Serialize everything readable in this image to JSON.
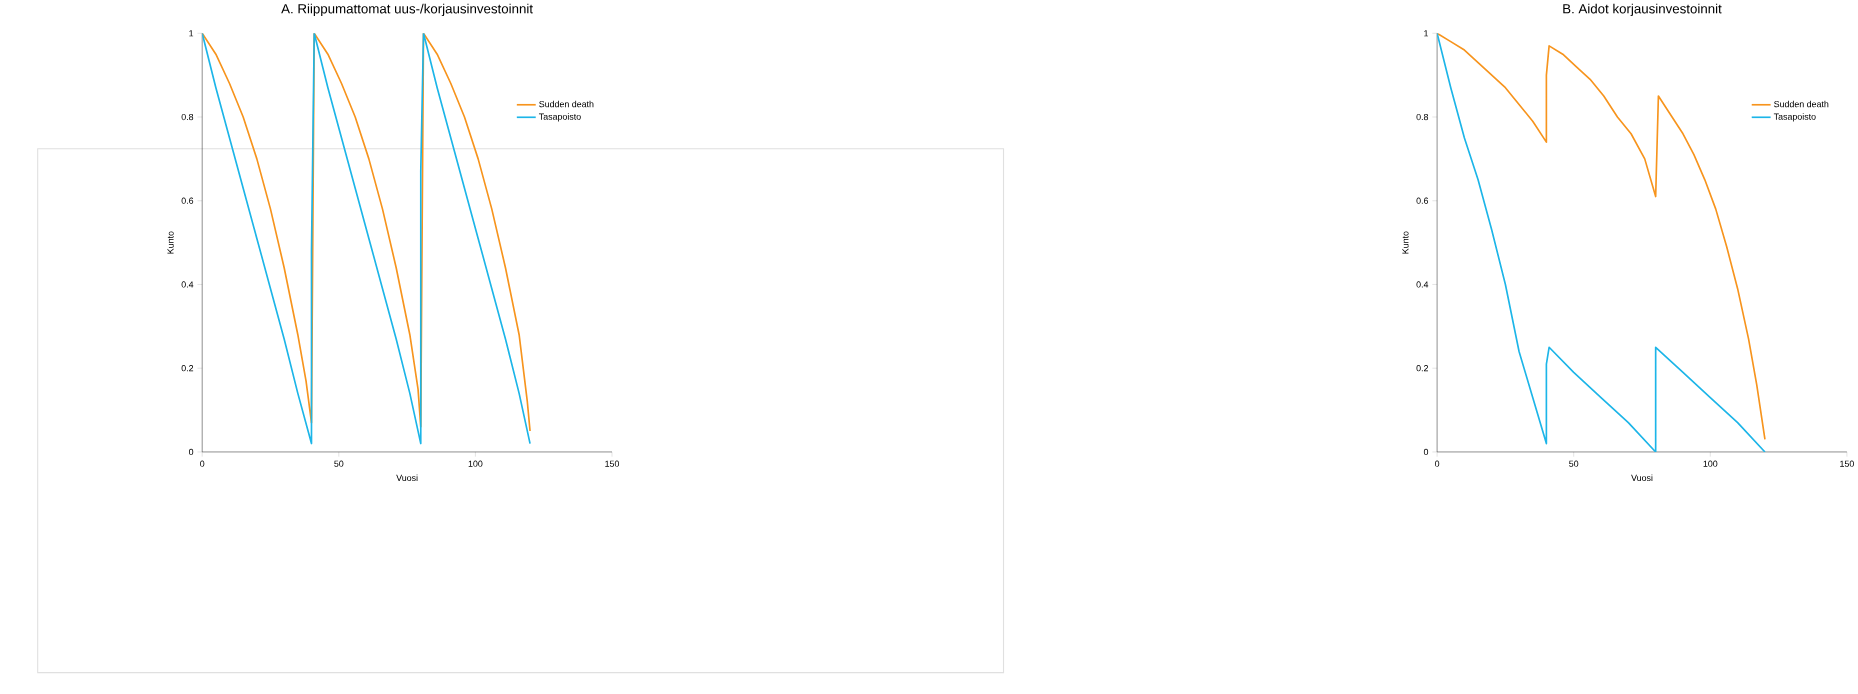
{
  "chart_data": [
    {
      "type": "line",
      "title": "A. Riippumattomat uus-/korjausinvestoinnit",
      "xlabel": "Vuosi",
      "ylabel": "Kunto",
      "xlim": [
        0,
        150
      ],
      "ylim": [
        0,
        1
      ],
      "xticks": [
        0,
        50,
        100,
        150
      ],
      "yticks": [
        0,
        0.2,
        0.4,
        0.6,
        0.8,
        1
      ],
      "legend": "top right",
      "grid": false,
      "series": [
        {
          "name": "Sudden death",
          "color": "#f7941d",
          "x": [
            0,
            5,
            10,
            15,
            20,
            25,
            30,
            35,
            38,
            40,
            41,
            46,
            51,
            56,
            61,
            66,
            71,
            76,
            79,
            80,
            81,
            86,
            91,
            96,
            101,
            106,
            111,
            116,
            119,
            120
          ],
          "values": [
            1,
            0.95,
            0.88,
            0.8,
            0.7,
            0.58,
            0.44,
            0.28,
            0.17,
            0.07,
            1,
            0.95,
            0.88,
            0.8,
            0.7,
            0.58,
            0.44,
            0.28,
            0.15,
            0.06,
            1,
            0.95,
            0.88,
            0.8,
            0.7,
            0.58,
            0.44,
            0.28,
            0.12,
            0.05
          ]
        },
        {
          "name": "Tasapoisto",
          "color": "#1cb5e8",
          "x": [
            0,
            5,
            10,
            15,
            20,
            25,
            30,
            35,
            40,
            40,
            41,
            46,
            51,
            56,
            61,
            66,
            71,
            76,
            80,
            80,
            81,
            86,
            91,
            96,
            101,
            106,
            111,
            116,
            120
          ],
          "values": [
            1,
            0.87,
            0.75,
            0.63,
            0.51,
            0.39,
            0.27,
            0.14,
            0.02,
            0.48,
            1,
            0.87,
            0.75,
            0.63,
            0.51,
            0.39,
            0.27,
            0.14,
            0.02,
            0.67,
            1,
            0.87,
            0.75,
            0.63,
            0.51,
            0.39,
            0.27,
            0.14,
            0.02
          ]
        }
      ]
    },
    {
      "type": "line",
      "title": "B. Aidot korjausinvestoinnit",
      "xlabel": "Vuosi",
      "ylabel": "Kunto",
      "xlim": [
        0,
        150
      ],
      "ylim": [
        0,
        1
      ],
      "xticks": [
        0,
        50,
        100,
        150
      ],
      "yticks": [
        0,
        0.2,
        0.4,
        0.6,
        0.8,
        1
      ],
      "legend": "top right",
      "grid": false,
      "series": [
        {
          "name": "Sudden death",
          "color": "#f7941d",
          "x": [
            0,
            5,
            10,
            15,
            20,
            25,
            30,
            35,
            40,
            40,
            41,
            46,
            51,
            56,
            61,
            66,
            71,
            76,
            80,
            81,
            86,
            90,
            94,
            98,
            102,
            106,
            110,
            114,
            117,
            120
          ],
          "values": [
            1,
            0.98,
            0.96,
            0.93,
            0.9,
            0.87,
            0.83,
            0.79,
            0.74,
            0.9,
            0.97,
            0.95,
            0.92,
            0.89,
            0.85,
            0.8,
            0.76,
            0.7,
            0.61,
            0.85,
            0.8,
            0.76,
            0.71,
            0.65,
            0.58,
            0.49,
            0.39,
            0.27,
            0.16,
            0.03
          ]
        },
        {
          "name": "Tasapoisto",
          "color": "#1cb5e8",
          "x": [
            0,
            5,
            10,
            15,
            20,
            25,
            30,
            35,
            40,
            40,
            41,
            50,
            60,
            70,
            80,
            80,
            90,
            100,
            110,
            120
          ],
          "values": [
            1,
            0.87,
            0.75,
            0.65,
            0.53,
            0.4,
            0.24,
            0.13,
            0.02,
            0.21,
            0.25,
            0.19,
            0.13,
            0.07,
            0,
            0.25,
            0.19,
            0.13,
            0.07,
            0
          ]
        }
      ]
    }
  ]
}
